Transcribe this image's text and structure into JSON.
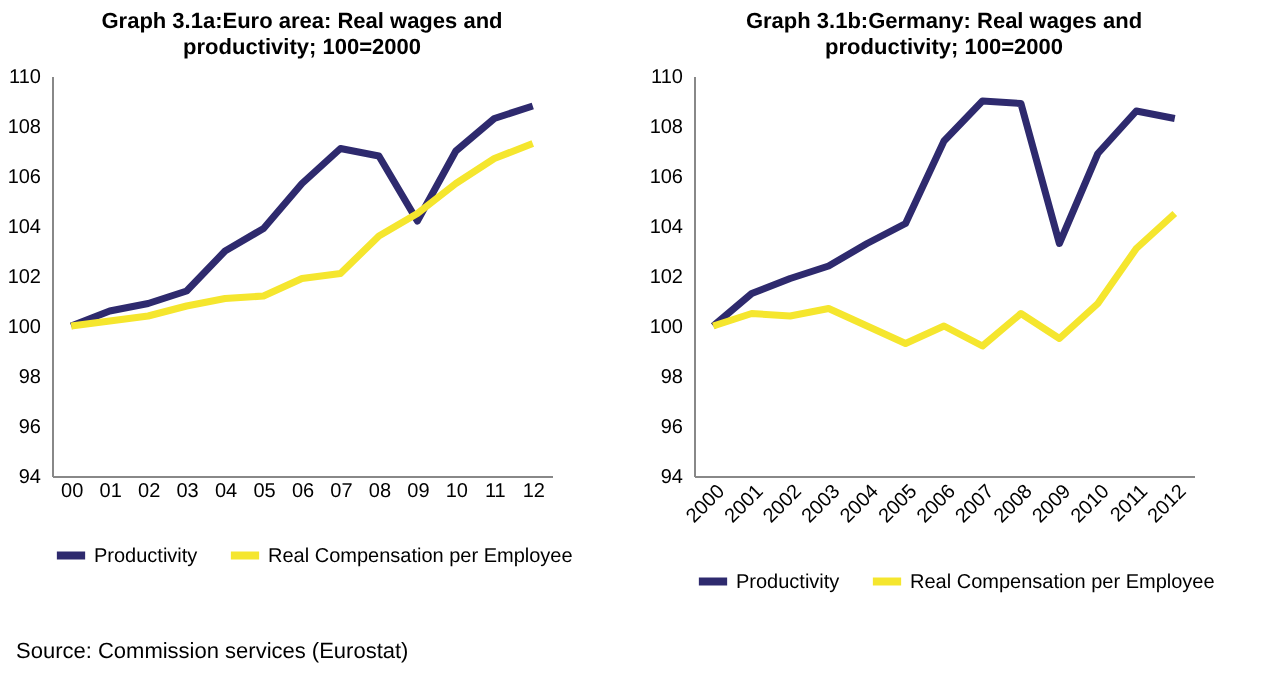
{
  "chart_data": [
    {
      "type": "line",
      "title": "Graph 3.1a:Euro area: Real wages and productivity; 100=2000",
      "categories": [
        "00",
        "01",
        "02",
        "03",
        "04",
        "05",
        "06",
        "07",
        "08",
        "09",
        "10",
        "11",
        "12"
      ],
      "series": [
        {
          "name": "Productivity",
          "color": "#2e2a6e",
          "values": [
            100,
            100.6,
            100.9,
            101.4,
            103.0,
            103.9,
            105.7,
            107.1,
            106.8,
            104.2,
            107.0,
            108.3,
            108.8
          ]
        },
        {
          "name": "Real Compensation per Employee",
          "color": "#f5e62e",
          "values": [
            100,
            100.2,
            100.4,
            100.8,
            101.1,
            101.2,
            101.9,
            102.1,
            103.6,
            104.5,
            105.7,
            106.7,
            107.3
          ]
        }
      ],
      "ylim": [
        94,
        110
      ],
      "yticks": [
        94,
        96,
        98,
        100,
        102,
        104,
        106,
        108,
        110
      ],
      "grid": false,
      "legend": "bottom",
      "marker": "none",
      "line_style": "solid",
      "annotations": [
        "Source: Commission services (Eurostat)"
      ]
    },
    {
      "type": "line",
      "title": "Graph 3.1b:Germany: Real wages and productivity; 100=2000",
      "categories": [
        "2000",
        "2001",
        "2002",
        "2003",
        "2004",
        "2005",
        "2006",
        "2007",
        "2008",
        "2009",
        "2010",
        "2011",
        "2012"
      ],
      "series": [
        {
          "name": "Productivity",
          "color": "#2e2a6e",
          "values": [
            100,
            101.3,
            101.9,
            102.4,
            103.3,
            104.1,
            107.4,
            109.0,
            108.9,
            103.3,
            106.9,
            108.6,
            108.3
          ]
        },
        {
          "name": "Real Compensation per Employee",
          "color": "#f5e62e",
          "values": [
            100,
            100.5,
            100.4,
            100.7,
            100.0,
            99.3,
            100.0,
            99.2,
            100.5,
            99.5,
            100.9,
            103.1,
            104.5
          ]
        }
      ],
      "ylim": [
        94,
        110
      ],
      "yticks": [
        94,
        96,
        98,
        100,
        102,
        104,
        106,
        108,
        110
      ],
      "grid": false,
      "legend": "bottom",
      "marker": "none",
      "line_style": "solid"
    }
  ]
}
